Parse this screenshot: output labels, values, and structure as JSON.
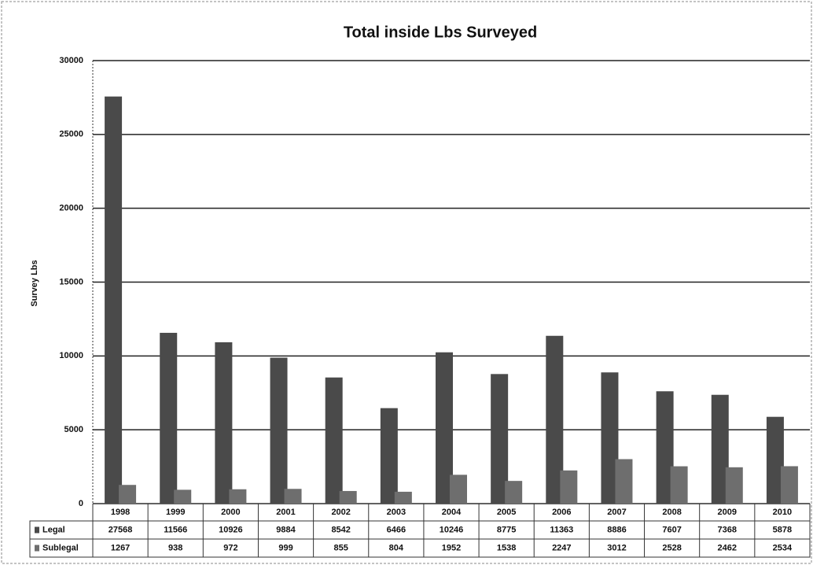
{
  "chart_data": {
    "type": "bar",
    "title": "Total inside Lbs Surveyed",
    "y_label": "Survey Lbs",
    "categories": [
      "1998",
      "1999",
      "2000",
      "2001",
      "2002",
      "2003",
      "2004",
      "2005",
      "2006",
      "2007",
      "2008",
      "2009",
      "2010"
    ],
    "series": [
      {
        "name": "Legal",
        "color": "#4a4a4a",
        "values": [
          27568,
          11566,
          10926,
          9884,
          8542,
          6466,
          10246,
          8775,
          11363,
          8886,
          7607,
          7368,
          5878
        ]
      },
      {
        "name": "Sublegal",
        "color": "#6e6e6e",
        "values": [
          1267,
          938,
          972,
          999,
          855,
          804,
          1952,
          1538,
          2247,
          3012,
          2528,
          2462,
          2534
        ]
      }
    ],
    "ylim": [
      0,
      30000
    ],
    "yticks": [
      0,
      5000,
      10000,
      15000,
      20000,
      25000,
      30000
    ],
    "grid": true
  }
}
